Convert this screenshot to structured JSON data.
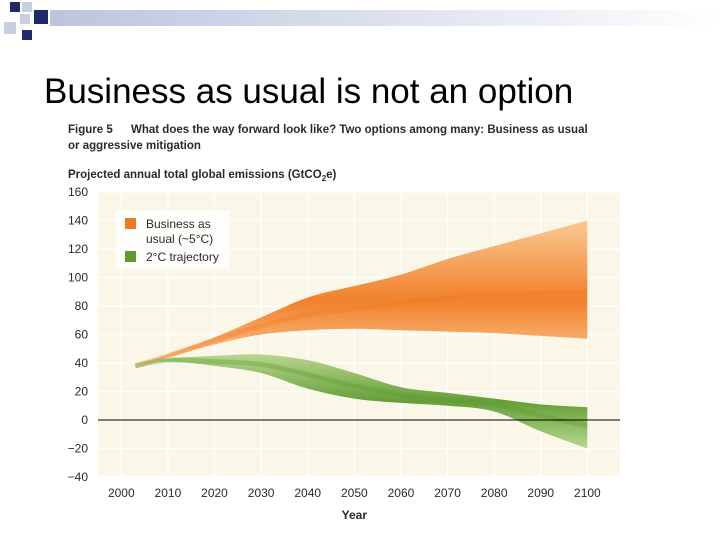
{
  "slide": {
    "title": "Business as usual is not an option"
  },
  "colors": {
    "decor_dark": "#1f2a6b",
    "decor_light": "#c9cfe3",
    "plot_bg": "#faf7e8",
    "grid": "#ffffff",
    "heading": "#2d2a26",
    "bau_light": "#fbc68e",
    "bau_dark": "#f07a22",
    "deg2_light": "#b4d58b",
    "deg2_dark": "#5d9a2f",
    "zero_line": "#000000"
  },
  "chart_data": {
    "type": "area",
    "figure_label": "Figure 5",
    "title": "What does the way forward look like? Two options among many: Business as usual or aggressive mitigation",
    "title_line1": "What does the way forward look like? Two options among many: Business as usual",
    "title_line2": "or aggressive mitigation",
    "ylabel_prefix": "Projected annual total global emissions (GtCO",
    "ylabel_sub": "2",
    "ylabel_suffix": "e)",
    "xlabel": "Year",
    "xlim": [
      1995,
      2107
    ],
    "ylim": [
      -40,
      160
    ],
    "x_ticks": [
      2000,
      2010,
      2020,
      2030,
      2040,
      2050,
      2060,
      2070,
      2080,
      2090,
      2100
    ],
    "x_tick_labels": [
      "2000",
      "2010",
      "2020",
      "2030",
      "2040",
      "2050",
      "2060",
      "2070",
      "2080",
      "2090",
      "2100"
    ],
    "y_ticks": [
      -40,
      -20,
      0,
      20,
      40,
      60,
      80,
      100,
      120,
      140,
      160
    ],
    "y_tick_labels": [
      "−40",
      "−20",
      "0",
      "20",
      "40",
      "60",
      "80",
      "100",
      "120",
      "140",
      "160"
    ],
    "grid": true,
    "legend_position": "top-left",
    "series": [
      {
        "name": "Business as usual (~5°C)",
        "legend_lines": [
          "Business as",
          "usual (~5°C)"
        ],
        "color": "#f07a22",
        "x": [
          2003,
          2010,
          2020,
          2030,
          2040,
          2050,
          2060,
          2070,
          2080,
          2090,
          2100
        ],
        "upper": [
          38,
          46,
          58,
          72,
          86,
          94,
          102,
          113,
          122,
          131,
          140
        ],
        "lower": [
          38,
          44,
          53,
          60,
          63,
          64,
          63,
          62,
          61,
          59,
          57
        ],
        "center": [
          38,
          45,
          56,
          66,
          74,
          78,
          82,
          86,
          88,
          89,
          90
        ]
      },
      {
        "name": "2°C trajectory",
        "legend_lines": [
          "2°C trajectory"
        ],
        "color": "#5d9a2f",
        "x": [
          2003,
          2010,
          2020,
          2030,
          2040,
          2050,
          2060,
          2070,
          2080,
          2090,
          2100
        ],
        "upper": [
          38,
          43,
          45,
          46,
          42,
          33,
          23,
          19,
          15,
          11,
          9
        ],
        "lower": [
          38,
          41,
          38,
          33,
          22,
          15,
          12,
          10,
          6,
          -8,
          -20
        ],
        "center": [
          38,
          42,
          41,
          39,
          32,
          24,
          18,
          14,
          11,
          3,
          -4
        ]
      }
    ]
  }
}
